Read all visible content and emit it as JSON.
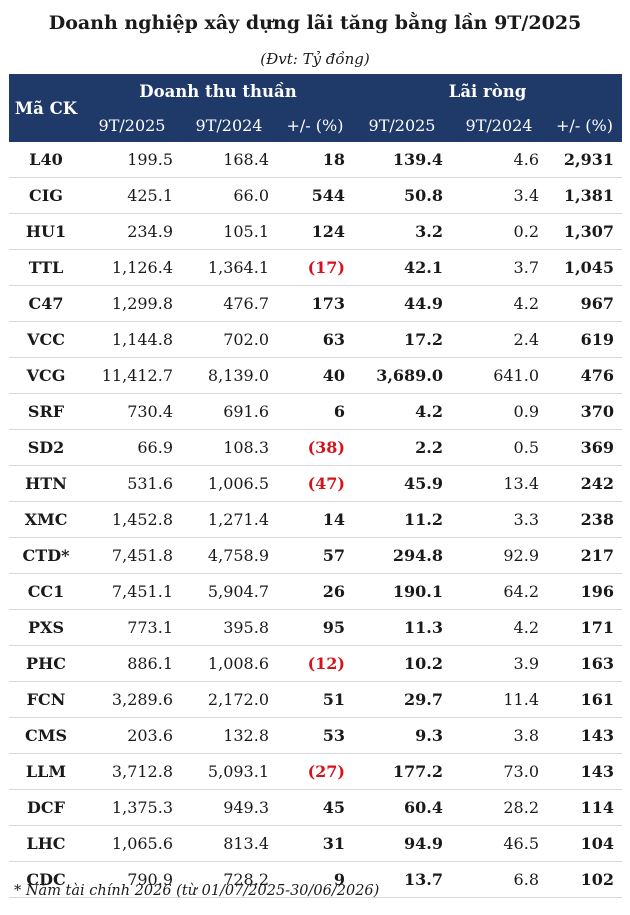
{
  "title": "Doanh nghiệp xây dựng lãi tăng bằng lần 9T/2025",
  "unit": "(Đvt: Tỷ đồng)",
  "headers": {
    "code": "Mã CK",
    "revenue_group": "Doanh thu thuần",
    "profit_group": "Lãi ròng",
    "sub": [
      "9T/2025",
      "9T/2024",
      "+/- (%)",
      "9T/2025",
      "9T/2024",
      "+/- (%)"
    ]
  },
  "rows": [
    {
      "code": "L40",
      "rev25": "199.5",
      "rev24": "168.4",
      "rev_chg": "18",
      "rev_neg": false,
      "np25": "139.4",
      "np24": "4.6",
      "np_chg": "2,931"
    },
    {
      "code": "CIG",
      "rev25": "425.1",
      "rev24": "66.0",
      "rev_chg": "544",
      "rev_neg": false,
      "np25": "50.8",
      "np24": "3.4",
      "np_chg": "1,381"
    },
    {
      "code": "HU1",
      "rev25": "234.9",
      "rev24": "105.1",
      "rev_chg": "124",
      "rev_neg": false,
      "np25": "3.2",
      "np24": "0.2",
      "np_chg": "1,307"
    },
    {
      "code": "TTL",
      "rev25": "1,126.4",
      "rev24": "1,364.1",
      "rev_chg": "(17)",
      "rev_neg": true,
      "np25": "42.1",
      "np24": "3.7",
      "np_chg": "1,045"
    },
    {
      "code": "C47",
      "rev25": "1,299.8",
      "rev24": "476.7",
      "rev_chg": "173",
      "rev_neg": false,
      "np25": "44.9",
      "np24": "4.2",
      "np_chg": "967"
    },
    {
      "code": "VCC",
      "rev25": "1,144.8",
      "rev24": "702.0",
      "rev_chg": "63",
      "rev_neg": false,
      "np25": "17.2",
      "np24": "2.4",
      "np_chg": "619"
    },
    {
      "code": "VCG",
      "rev25": "11,412.7",
      "rev24": "8,139.0",
      "rev_chg": "40",
      "rev_neg": false,
      "np25": "3,689.0",
      "np24": "641.0",
      "np_chg": "476"
    },
    {
      "code": "SRF",
      "rev25": "730.4",
      "rev24": "691.6",
      "rev_chg": "6",
      "rev_neg": false,
      "np25": "4.2",
      "np24": "0.9",
      "np_chg": "370"
    },
    {
      "code": "SD2",
      "rev25": "66.9",
      "rev24": "108.3",
      "rev_chg": "(38)",
      "rev_neg": true,
      "np25": "2.2",
      "np24": "0.5",
      "np_chg": "369"
    },
    {
      "code": "HTN",
      "rev25": "531.6",
      "rev24": "1,006.5",
      "rev_chg": "(47)",
      "rev_neg": true,
      "np25": "45.9",
      "np24": "13.4",
      "np_chg": "242"
    },
    {
      "code": "XMC",
      "rev25": "1,452.8",
      "rev24": "1,271.4",
      "rev_chg": "14",
      "rev_neg": false,
      "np25": "11.2",
      "np24": "3.3",
      "np_chg": "238"
    },
    {
      "code": "CTD*",
      "rev25": "7,451.8",
      "rev24": "4,758.9",
      "rev_chg": "57",
      "rev_neg": false,
      "np25": "294.8",
      "np24": "92.9",
      "np_chg": "217"
    },
    {
      "code": "CC1",
      "rev25": "7,451.1",
      "rev24": "5,904.7",
      "rev_chg": "26",
      "rev_neg": false,
      "np25": "190.1",
      "np24": "64.2",
      "np_chg": "196"
    },
    {
      "code": "PXS",
      "rev25": "773.1",
      "rev24": "395.8",
      "rev_chg": "95",
      "rev_neg": false,
      "np25": "11.3",
      "np24": "4.2",
      "np_chg": "171"
    },
    {
      "code": "PHC",
      "rev25": "886.1",
      "rev24": "1,008.6",
      "rev_chg": "(12)",
      "rev_neg": true,
      "np25": "10.2",
      "np24": "3.9",
      "np_chg": "163"
    },
    {
      "code": "FCN",
      "rev25": "3,289.6",
      "rev24": "2,172.0",
      "rev_chg": "51",
      "rev_neg": false,
      "np25": "29.7",
      "np24": "11.4",
      "np_chg": "161"
    },
    {
      "code": "CMS",
      "rev25": "203.6",
      "rev24": "132.8",
      "rev_chg": "53",
      "rev_neg": false,
      "np25": "9.3",
      "np24": "3.8",
      "np_chg": "143"
    },
    {
      "code": "LLM",
      "rev25": "3,712.8",
      "rev24": "5,093.1",
      "rev_chg": "(27)",
      "rev_neg": true,
      "np25": "177.2",
      "np24": "73.0",
      "np_chg": "143"
    },
    {
      "code": "DCF",
      "rev25": "1,375.3",
      "rev24": "949.3",
      "rev_chg": "45",
      "rev_neg": false,
      "np25": "60.4",
      "np24": "28.2",
      "np_chg": "114"
    },
    {
      "code": "LHC",
      "rev25": "1,065.6",
      "rev24": "813.4",
      "rev_chg": "31",
      "rev_neg": false,
      "np25": "94.9",
      "np24": "46.5",
      "np_chg": "104"
    },
    {
      "code": "CDC",
      "rev25": "790.9",
      "rev24": "728.2",
      "rev_chg": "9",
      "rev_neg": false,
      "np25": "13.7",
      "np24": "6.8",
      "np_chg": "102"
    }
  ],
  "colors": {
    "header_bg": "#1f3a68",
    "negative": "#d4141c"
  },
  "footnote": "* Năm tài chính 2026 (từ 01/07/2025-30/06/2026)"
}
